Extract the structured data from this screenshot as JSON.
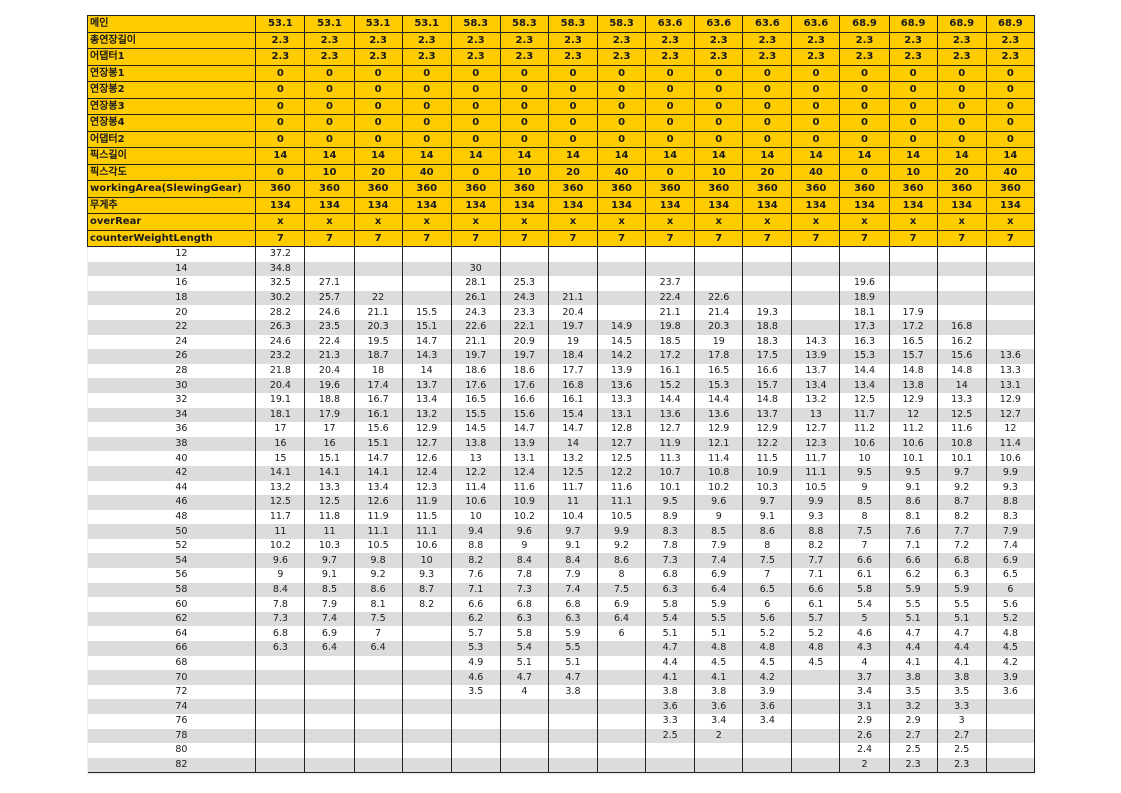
{
  "header_rows": [
    {
      "label": "메인",
      "values": [
        "53.1",
        "53.1",
        "53.1",
        "53.1",
        "58.3",
        "58.3",
        "58.3",
        "58.3",
        "63.6",
        "63.6",
        "63.6",
        "63.6",
        "68.9",
        "68.9",
        "68.9",
        "68.9"
      ]
    },
    {
      "label": "총연장길이",
      "values": [
        "2.3",
        "2.3",
        "2.3",
        "2.3",
        "2.3",
        "2.3",
        "2.3",
        "2.3",
        "2.3",
        "2.3",
        "2.3",
        "2.3",
        "2.3",
        "2.3",
        "2.3",
        "2.3"
      ]
    },
    {
      "label": "어댑터1",
      "values": [
        "2.3",
        "2.3",
        "2.3",
        "2.3",
        "2.3",
        "2.3",
        "2.3",
        "2.3",
        "2.3",
        "2.3",
        "2.3",
        "2.3",
        "2.3",
        "2.3",
        "2.3",
        "2.3"
      ]
    },
    {
      "label": "연장봉1",
      "values": [
        "0",
        "0",
        "0",
        "0",
        "0",
        "0",
        "0",
        "0",
        "0",
        "0",
        "0",
        "0",
        "0",
        "0",
        "0",
        "0"
      ]
    },
    {
      "label": "연장봉2",
      "values": [
        "0",
        "0",
        "0",
        "0",
        "0",
        "0",
        "0",
        "0",
        "0",
        "0",
        "0",
        "0",
        "0",
        "0",
        "0",
        "0"
      ]
    },
    {
      "label": "연장봉3",
      "values": [
        "0",
        "0",
        "0",
        "0",
        "0",
        "0",
        "0",
        "0",
        "0",
        "0",
        "0",
        "0",
        "0",
        "0",
        "0",
        "0"
      ]
    },
    {
      "label": "연장봉4",
      "values": [
        "0",
        "0",
        "0",
        "0",
        "0",
        "0",
        "0",
        "0",
        "0",
        "0",
        "0",
        "0",
        "0",
        "0",
        "0",
        "0"
      ]
    },
    {
      "label": "어댑터2",
      "values": [
        "0",
        "0",
        "0",
        "0",
        "0",
        "0",
        "0",
        "0",
        "0",
        "0",
        "0",
        "0",
        "0",
        "0",
        "0",
        "0"
      ]
    },
    {
      "label": "픽스길이",
      "values": [
        "14",
        "14",
        "14",
        "14",
        "14",
        "14",
        "14",
        "14",
        "14",
        "14",
        "14",
        "14",
        "14",
        "14",
        "14",
        "14"
      ]
    },
    {
      "label": "픽스각도",
      "values": [
        "0",
        "10",
        "20",
        "40",
        "0",
        "10",
        "20",
        "40",
        "0",
        "10",
        "20",
        "40",
        "0",
        "10",
        "20",
        "40"
      ]
    },
    {
      "label": "workingArea(SlewingGear)",
      "values": [
        "360",
        "360",
        "360",
        "360",
        "360",
        "360",
        "360",
        "360",
        "360",
        "360",
        "360",
        "360",
        "360",
        "360",
        "360",
        "360"
      ]
    },
    {
      "label": "무게추",
      "values": [
        "134",
        "134",
        "134",
        "134",
        "134",
        "134",
        "134",
        "134",
        "134",
        "134",
        "134",
        "134",
        "134",
        "134",
        "134",
        "134"
      ]
    },
    {
      "label": "overRear",
      "values": [
        "x",
        "x",
        "x",
        "x",
        "x",
        "x",
        "x",
        "x",
        "x",
        "x",
        "x",
        "x",
        "x",
        "x",
        "x",
        "x"
      ]
    },
    {
      "label": "counterWeightLength",
      "values": [
        "7",
        "7",
        "7",
        "7",
        "7",
        "7",
        "7",
        "7",
        "7",
        "7",
        "7",
        "7",
        "7",
        "7",
        "7",
        "7"
      ]
    }
  ],
  "data_rows": [
    {
      "radius": "12",
      "values": [
        "37.2",
        "",
        "",
        "",
        "",
        "",
        "",
        "",
        "",
        "",
        "",
        "",
        "",
        "",
        "",
        ""
      ]
    },
    {
      "radius": "14",
      "values": [
        "34.8",
        "",
        "",
        "",
        "30",
        "",
        "",
        "",
        "",
        "",
        "",
        "",
        "",
        "",
        "",
        ""
      ]
    },
    {
      "radius": "16",
      "values": [
        "32.5",
        "27.1",
        "",
        "",
        "28.1",
        "25.3",
        "",
        "",
        "23.7",
        "",
        "",
        "",
        "19.6",
        "",
        "",
        ""
      ]
    },
    {
      "radius": "18",
      "values": [
        "30.2",
        "25.7",
        "22",
        "",
        "26.1",
        "24.3",
        "21.1",
        "",
        "22.4",
        "22.6",
        "",
        "",
        "18.9",
        "",
        "",
        ""
      ]
    },
    {
      "radius": "20",
      "values": [
        "28.2",
        "24.6",
        "21.1",
        "15.5",
        "24.3",
        "23.3",
        "20.4",
        "",
        "21.1",
        "21.4",
        "19.3",
        "",
        "18.1",
        "17.9",
        "",
        ""
      ]
    },
    {
      "radius": "22",
      "values": [
        "26.3",
        "23.5",
        "20.3",
        "15.1",
        "22.6",
        "22.1",
        "19.7",
        "14.9",
        "19.8",
        "20.3",
        "18.8",
        "",
        "17.3",
        "17.2",
        "16.8",
        ""
      ]
    },
    {
      "radius": "24",
      "values": [
        "24.6",
        "22.4",
        "19.5",
        "14.7",
        "21.1",
        "20.9",
        "19",
        "14.5",
        "18.5",
        "19",
        "18.3",
        "14.3",
        "16.3",
        "16.5",
        "16.2",
        ""
      ]
    },
    {
      "radius": "26",
      "values": [
        "23.2",
        "21.3",
        "18.7",
        "14.3",
        "19.7",
        "19.7",
        "18.4",
        "14.2",
        "17.2",
        "17.8",
        "17.5",
        "13.9",
        "15.3",
        "15.7",
        "15.6",
        "13.6"
      ]
    },
    {
      "radius": "28",
      "values": [
        "21.8",
        "20.4",
        "18",
        "14",
        "18.6",
        "18.6",
        "17.7",
        "13.9",
        "16.1",
        "16.5",
        "16.6",
        "13.7",
        "14.4",
        "14.8",
        "14.8",
        "13.3"
      ]
    },
    {
      "radius": "30",
      "values": [
        "20.4",
        "19.6",
        "17.4",
        "13.7",
        "17.6",
        "17.6",
        "16.8",
        "13.6",
        "15.2",
        "15.3",
        "15.7",
        "13.4",
        "13.4",
        "13.8",
        "14",
        "13.1"
      ]
    },
    {
      "radius": "32",
      "values": [
        "19.1",
        "18.8",
        "16.7",
        "13.4",
        "16.5",
        "16.6",
        "16.1",
        "13.3",
        "14.4",
        "14.4",
        "14.8",
        "13.2",
        "12.5",
        "12.9",
        "13.3",
        "12.9"
      ]
    },
    {
      "radius": "34",
      "values": [
        "18.1",
        "17.9",
        "16.1",
        "13.2",
        "15.5",
        "15.6",
        "15.4",
        "13.1",
        "13.6",
        "13.6",
        "13.7",
        "13",
        "11.7",
        "12",
        "12.5",
        "12.7"
      ]
    },
    {
      "radius": "36",
      "values": [
        "17",
        "17",
        "15.6",
        "12.9",
        "14.5",
        "14.7",
        "14.7",
        "12.8",
        "12.7",
        "12.9",
        "12.9",
        "12.7",
        "11.2",
        "11.2",
        "11.6",
        "12"
      ]
    },
    {
      "radius": "38",
      "values": [
        "16",
        "16",
        "15.1",
        "12.7",
        "13.8",
        "13.9",
        "14",
        "12.7",
        "11.9",
        "12.1",
        "12.2",
        "12.3",
        "10.6",
        "10.6",
        "10.8",
        "11.4"
      ]
    },
    {
      "radius": "40",
      "values": [
        "15",
        "15.1",
        "14.7",
        "12.6",
        "13",
        "13.1",
        "13.2",
        "12.5",
        "11.3",
        "11.4",
        "11.5",
        "11.7",
        "10",
        "10.1",
        "10.1",
        "10.6"
      ]
    },
    {
      "radius": "42",
      "values": [
        "14.1",
        "14.1",
        "14.1",
        "12.4",
        "12.2",
        "12.4",
        "12.5",
        "12.2",
        "10.7",
        "10.8",
        "10.9",
        "11.1",
        "9.5",
        "9.5",
        "9.7",
        "9.9"
      ]
    },
    {
      "radius": "44",
      "values": [
        "13.2",
        "13.3",
        "13.4",
        "12.3",
        "11.4",
        "11.6",
        "11.7",
        "11.6",
        "10.1",
        "10.2",
        "10.3",
        "10.5",
        "9",
        "9.1",
        "9.2",
        "9.3"
      ]
    },
    {
      "radius": "46",
      "values": [
        "12.5",
        "12.5",
        "12.6",
        "11.9",
        "10.6",
        "10.9",
        "11",
        "11.1",
        "9.5",
        "9.6",
        "9.7",
        "9.9",
        "8.5",
        "8.6",
        "8.7",
        "8.8"
      ]
    },
    {
      "radius": "48",
      "values": [
        "11.7",
        "11.8",
        "11.9",
        "11.5",
        "10",
        "10.2",
        "10.4",
        "10.5",
        "8.9",
        "9",
        "9.1",
        "9.3",
        "8",
        "8.1",
        "8.2",
        "8.3"
      ]
    },
    {
      "radius": "50",
      "values": [
        "11",
        "11",
        "11.1",
        "11.1",
        "9.4",
        "9.6",
        "9.7",
        "9.9",
        "8.3",
        "8.5",
        "8.6",
        "8.8",
        "7.5",
        "7.6",
        "7.7",
        "7.9"
      ]
    },
    {
      "radius": "52",
      "values": [
        "10.2",
        "10.3",
        "10.5",
        "10.6",
        "8.8",
        "9",
        "9.1",
        "9.2",
        "7.8",
        "7.9",
        "8",
        "8.2",
        "7",
        "7.1",
        "7.2",
        "7.4"
      ]
    },
    {
      "radius": "54",
      "values": [
        "9.6",
        "9.7",
        "9.8",
        "10",
        "8.2",
        "8.4",
        "8.4",
        "8.6",
        "7.3",
        "7.4",
        "7.5",
        "7.7",
        "6.6",
        "6.6",
        "6.8",
        "6.9"
      ]
    },
    {
      "radius": "56",
      "values": [
        "9",
        "9.1",
        "9.2",
        "9.3",
        "7.6",
        "7.8",
        "7.9",
        "8",
        "6.8",
        "6.9",
        "7",
        "7.1",
        "6.1",
        "6.2",
        "6.3",
        "6.5"
      ]
    },
    {
      "radius": "58",
      "values": [
        "8.4",
        "8.5",
        "8.6",
        "8.7",
        "7.1",
        "7.3",
        "7.4",
        "7.5",
        "6.3",
        "6.4",
        "6.5",
        "6.6",
        "5.8",
        "5.9",
        "5.9",
        "6"
      ]
    },
    {
      "radius": "60",
      "values": [
        "7.8",
        "7.9",
        "8.1",
        "8.2",
        "6.6",
        "6.8",
        "6.8",
        "6.9",
        "5.8",
        "5.9",
        "6",
        "6.1",
        "5.4",
        "5.5",
        "5.5",
        "5.6"
      ]
    },
    {
      "radius": "62",
      "values": [
        "7.3",
        "7.4",
        "7.5",
        "",
        "6.2",
        "6.3",
        "6.3",
        "6.4",
        "5.4",
        "5.5",
        "5.6",
        "5.7",
        "5",
        "5.1",
        "5.1",
        "5.2"
      ]
    },
    {
      "radius": "64",
      "values": [
        "6.8",
        "6.9",
        "7",
        "",
        "5.7",
        "5.8",
        "5.9",
        "6",
        "5.1",
        "5.1",
        "5.2",
        "5.2",
        "4.6",
        "4.7",
        "4.7",
        "4.8"
      ]
    },
    {
      "radius": "66",
      "values": [
        "6.3",
        "6.4",
        "6.4",
        "",
        "5.3",
        "5.4",
        "5.5",
        "",
        "4.7",
        "4.8",
        "4.8",
        "4.8",
        "4.3",
        "4.4",
        "4.4",
        "4.5"
      ]
    },
    {
      "radius": "68",
      "values": [
        "",
        "",
        "",
        "",
        "4.9",
        "5.1",
        "5.1",
        "",
        "4.4",
        "4.5",
        "4.5",
        "4.5",
        "4",
        "4.1",
        "4.1",
        "4.2"
      ]
    },
    {
      "radius": "70",
      "values": [
        "",
        "",
        "",
        "",
        "4.6",
        "4.7",
        "4.7",
        "",
        "4.1",
        "4.1",
        "4.2",
        "",
        "3.7",
        "3.8",
        "3.8",
        "3.9"
      ]
    },
    {
      "radius": "72",
      "values": [
        "",
        "",
        "",
        "",
        "3.5",
        "4",
        "3.8",
        "",
        "3.8",
        "3.8",
        "3.9",
        "",
        "3.4",
        "3.5",
        "3.5",
        "3.6"
      ]
    },
    {
      "radius": "74",
      "values": [
        "",
        "",
        "",
        "",
        "",
        "",
        "",
        "",
        "3.6",
        "3.6",
        "3.6",
        "",
        "3.1",
        "3.2",
        "3.3",
        ""
      ]
    },
    {
      "radius": "76",
      "values": [
        "",
        "",
        "",
        "",
        "",
        "",
        "",
        "",
        "3.3",
        "3.4",
        "3.4",
        "",
        "2.9",
        "2.9",
        "3",
        ""
      ]
    },
    {
      "radius": "78",
      "values": [
        "",
        "",
        "",
        "",
        "",
        "",
        "",
        "",
        "2.5",
        "2",
        "",
        "",
        "2.6",
        "2.7",
        "2.7",
        ""
      ]
    },
    {
      "radius": "80",
      "values": [
        "",
        "",
        "",
        "",
        "",
        "",
        "",
        "",
        "",
        "",
        "",
        "",
        "2.4",
        "2.5",
        "2.5",
        ""
      ]
    },
    {
      "radius": "82",
      "values": [
        "",
        "",
        "",
        "",
        "",
        "",
        "",
        "",
        "",
        "",
        "",
        "",
        "2",
        "2.3",
        "2.3",
        ""
      ]
    }
  ]
}
